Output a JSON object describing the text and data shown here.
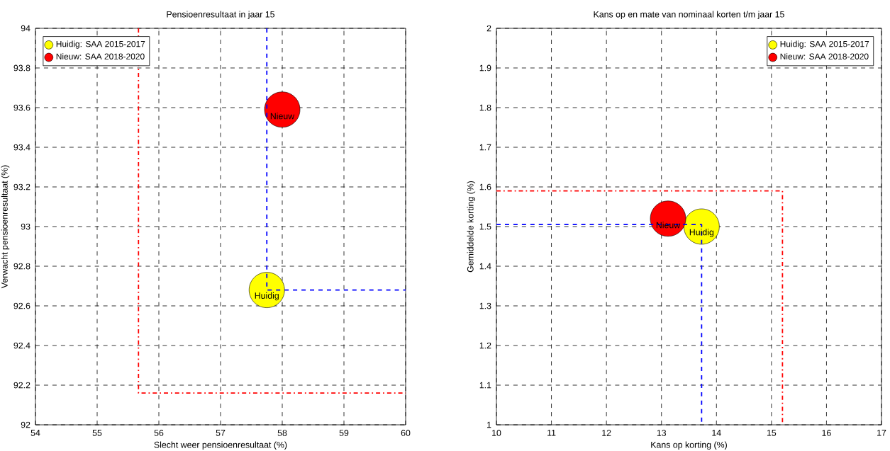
{
  "chart_data": [
    {
      "type": "bubble",
      "title": "Pensioenresultaat in jaar 15",
      "xlabel": "Slecht weer pensioenresultaat (%)",
      "ylabel": "Verwacht pensioenresultaat (%)",
      "xlim": [
        54,
        60
      ],
      "xticks": [
        54,
        55,
        56,
        57,
        58,
        59,
        60
      ],
      "ylim": [
        92,
        94
      ],
      "yticks": [
        92,
        92.2,
        92.4,
        92.6,
        92.8,
        93,
        93.2,
        93.4,
        93.6,
        93.8,
        94
      ],
      "grid": true,
      "legend": "top left",
      "series": [
        {
          "type": "line",
          "color": "#ff0000",
          "line_style": "dashdot",
          "x": [
            55.67,
            55.67,
            60
          ],
          "values": [
            94,
            92.16,
            92.16
          ]
        },
        {
          "type": "line",
          "color": "#0000ff",
          "line_style": "dashed",
          "x": [
            57.75,
            57.75,
            60
          ],
          "values": [
            94,
            92.68,
            92.68
          ]
        },
        {
          "name": "Huidig: SAA 2015-2017",
          "color": "#ffff00",
          "x": [
            57.75
          ],
          "values": [
            92.68
          ],
          "sizes": [
            1
          ]
        },
        {
          "name": "Nieuw: SAA 2018-2020",
          "color": "#ff0000",
          "x": [
            58.0
          ],
          "values": [
            93.59
          ],
          "sizes": [
            1
          ]
        }
      ],
      "annotations": [
        {
          "text": "Huidig",
          "x": 57.75,
          "y": 92.68
        },
        {
          "text": "Nieuw",
          "x": 58.0,
          "y": 93.59
        }
      ]
    },
    {
      "type": "bubble",
      "title": "Kans op en mate van nominaal korten t/m jaar 15",
      "xlabel": "Kans op korting (%)",
      "ylabel": "Gemiddelde korting (%)",
      "xlim": [
        10,
        17
      ],
      "xticks": [
        10,
        11,
        12,
        13,
        14,
        15,
        16,
        17
      ],
      "ylim": [
        1,
        2
      ],
      "yticks": [
        1,
        1.1,
        1.2,
        1.3,
        1.4,
        1.5,
        1.6,
        1.7,
        1.8,
        1.9,
        2
      ],
      "grid": true,
      "legend": "top right",
      "series": [
        {
          "type": "line",
          "color": "#ff0000",
          "line_style": "dashdot",
          "x": [
            10,
            15.2,
            15.2
          ],
          "values": [
            1.59,
            1.59,
            1
          ]
        },
        {
          "type": "line",
          "color": "#0000ff",
          "line_style": "dashed",
          "x": [
            10,
            13.73,
            13.73
          ],
          "values": [
            1.505,
            1.505,
            1
          ]
        },
        {
          "name": "Huidig: SAA 2015-2017",
          "color": "#ffff00",
          "x": [
            13.73
          ],
          "values": [
            1.5
          ],
          "sizes": [
            1
          ]
        },
        {
          "name": "Nieuw: SAA 2018-2020",
          "color": "#ff0000",
          "x": [
            13.12
          ],
          "values": [
            1.52
          ],
          "sizes": [
            1
          ]
        }
      ],
      "annotations": [
        {
          "text": "Huidig",
          "x": 13.73,
          "y": 1.5
        },
        {
          "text": "Nieuw",
          "x": 13.12,
          "y": 1.52
        }
      ]
    }
  ]
}
